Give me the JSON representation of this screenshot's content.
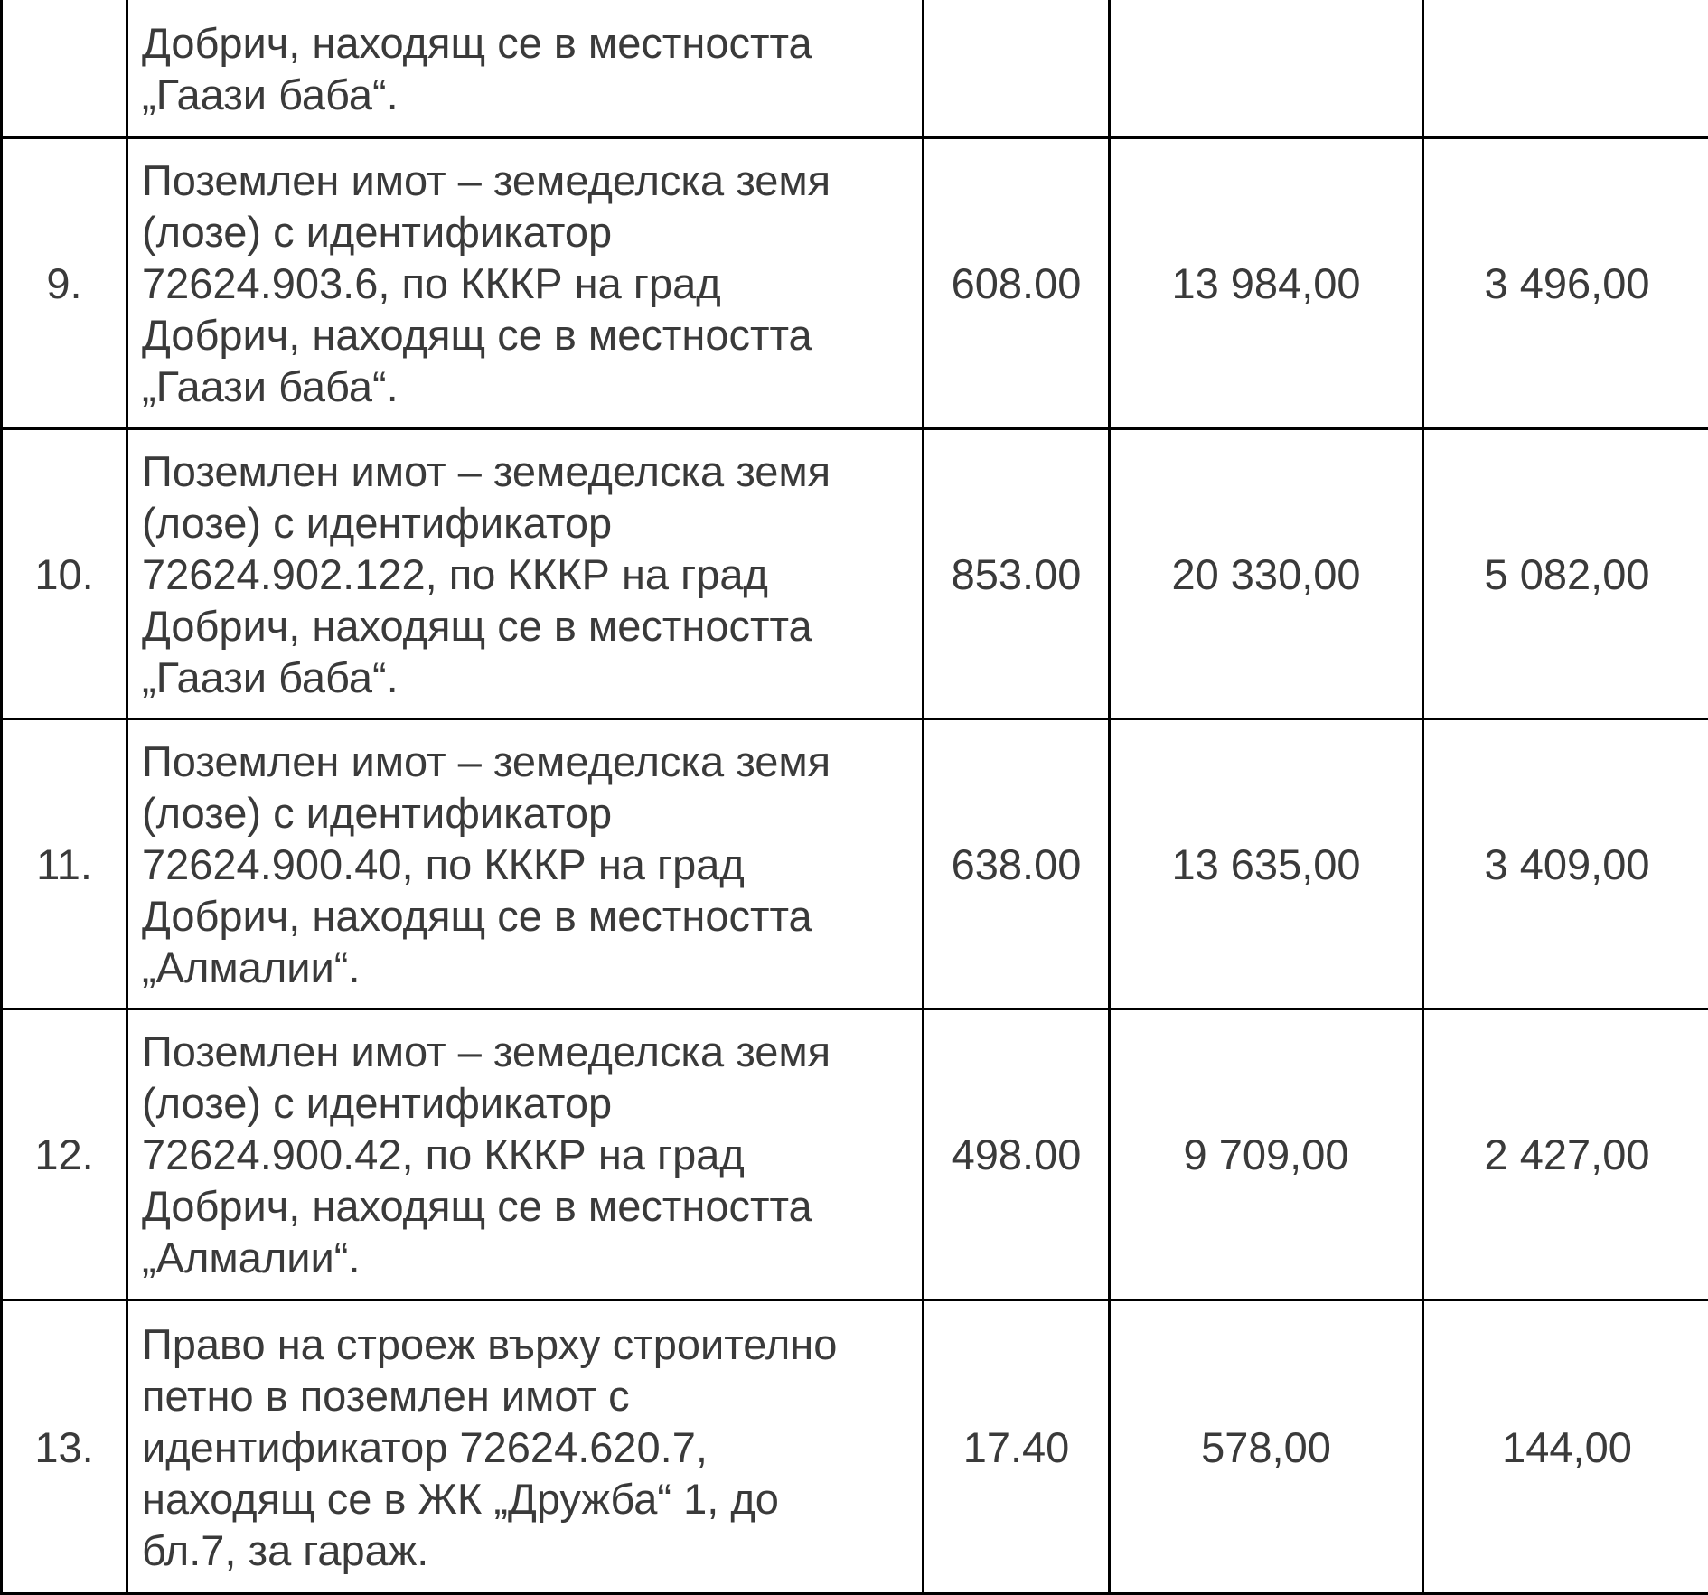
{
  "rows": [
    {
      "no": "",
      "description": [
        "Добрич, находящ се в местността",
        "„Гаази баба“."
      ],
      "area": "",
      "price": "",
      "tax": ""
    },
    {
      "no": "9.",
      "description": [
        "Поземлен имот – земеделска земя",
        "(лозе) с идентификатор",
        "72624.903.6, по КККР на град",
        "Добрич, находящ се в местността",
        "„Гаази баба“."
      ],
      "area": "608.00",
      "price": "13 984,00",
      "tax": "3 496,00"
    },
    {
      "no": "10.",
      "description": [
        "Поземлен имот – земеделска земя",
        "(лозе) с идентификатор",
        "72624.902.122, по КККР на град",
        "Добрич, находящ се в местността",
        "„Гаази баба“."
      ],
      "area": "853.00",
      "price": "20 330,00",
      "tax": "5 082,00"
    },
    {
      "no": "11.",
      "description": [
        "Поземлен имот – земеделска земя",
        "(лозе) с идентификатор",
        "72624.900.40, по КККР на град",
        "Добрич, находящ се в местността",
        "„Алмалии“."
      ],
      "area": "638.00",
      "price": "13 635,00",
      "tax": "3 409,00"
    },
    {
      "no": "12.",
      "description": [
        "Поземлен имот – земеделска земя",
        "(лозе) с идентификатор",
        "72624.900.42, по КККР на град",
        "Добрич, находящ се в местността",
        "„Алмалии“."
      ],
      "area": "498.00",
      "price": "9 709,00",
      "tax": "2 427,00"
    },
    {
      "no": "13.",
      "description": [
        "Право на строеж върху строително",
        "петно в поземлен имот с",
        "идентификатор 72624.620.7,",
        "находящ се в ЖК „Дружба“ 1, до",
        "бл.7, за гараж."
      ],
      "area": "17.40",
      "price": "578,00",
      "tax": "144,00"
    }
  ]
}
